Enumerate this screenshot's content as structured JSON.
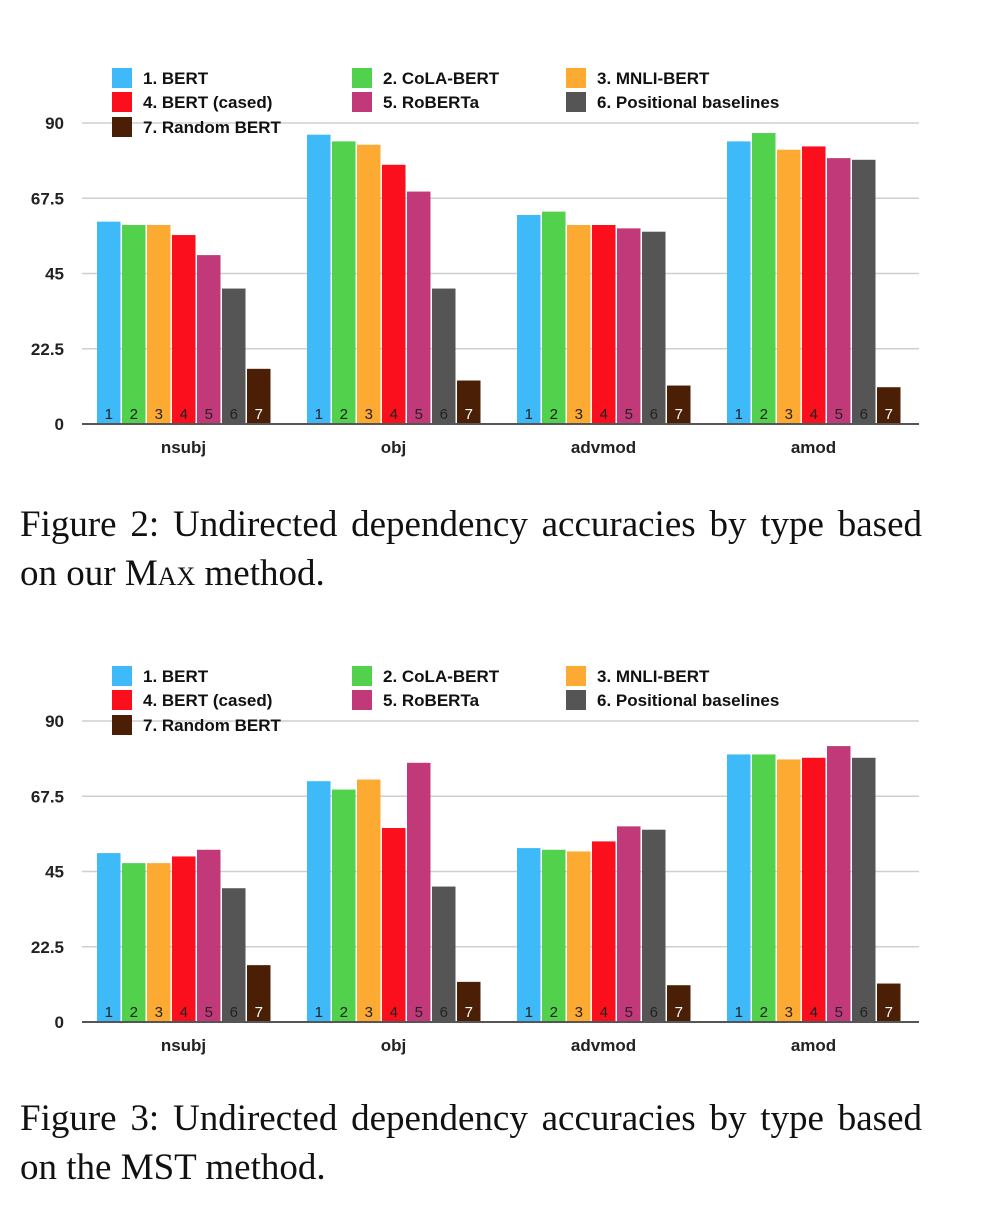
{
  "figures": [
    {
      "id": "fig2",
      "caption": {
        "prefix": "Figure 2:  Undirected dependency accuracies by type based on our ",
        "method": "Max",
        "suffix": " method."
      }
    },
    {
      "id": "fig3",
      "caption": {
        "prefix": "Figure 3:  Undirected dependency accuracies by type based on the MST method.",
        "method": "",
        "suffix": ""
      }
    }
  ],
  "chart_data": [
    {
      "type": "bar",
      "title": "",
      "xlabel": "",
      "ylabel": "",
      "ylim": [
        0,
        90
      ],
      "yticks": [
        "0",
        "22.5",
        "45",
        "67.5",
        "90"
      ],
      "grid": true,
      "legend_position": "top",
      "categories": [
        "nsubj",
        "obj",
        "advmod",
        "amod"
      ],
      "bar_labels": [
        "1",
        "2",
        "3",
        "4",
        "5",
        "6",
        "7"
      ],
      "series": [
        {
          "name": "1. BERT",
          "color": "#3DBAF7",
          "values": [
            60.5,
            86.5,
            62.5,
            84.5
          ]
        },
        {
          "name": "2. CoLA-BERT",
          "color": "#52D24C",
          "values": [
            59.5,
            84.5,
            63.5,
            87
          ]
        },
        {
          "name": "3. MNLI-BERT",
          "color": "#FDAA33",
          "values": [
            59.5,
            83.5,
            59.5,
            82
          ]
        },
        {
          "name": "4. BERT (cased)",
          "color": "#FB0F1D",
          "values": [
            56.5,
            77.5,
            59.5,
            83
          ]
        },
        {
          "name": "5. RoBERTa",
          "color": "#C2397A",
          "values": [
            50.5,
            69.5,
            58.5,
            79.5
          ]
        },
        {
          "name": "6. Positional baselines",
          "color": "#555555",
          "values": [
            40.5,
            40.5,
            57.5,
            79
          ]
        },
        {
          "name": "7. Random BERT",
          "color": "#4A1F05",
          "values": [
            16.5,
            13,
            11.5,
            11
          ]
        }
      ]
    },
    {
      "type": "bar",
      "title": "",
      "xlabel": "",
      "ylabel": "",
      "ylim": [
        0,
        90
      ],
      "yticks": [
        "0",
        "22.5",
        "45",
        "67.5",
        "90"
      ],
      "grid": true,
      "legend_position": "top",
      "categories": [
        "nsubj",
        "obj",
        "advmod",
        "amod"
      ],
      "bar_labels": [
        "1",
        "2",
        "3",
        "4",
        "5",
        "6",
        "7"
      ],
      "series": [
        {
          "name": "1. BERT",
          "color": "#3DBAF7",
          "values": [
            50.5,
            72,
            52,
            80
          ]
        },
        {
          "name": "2. CoLA-BERT",
          "color": "#52D24C",
          "values": [
            47.5,
            69.5,
            51.5,
            80
          ]
        },
        {
          "name": "3. MNLI-BERT",
          "color": "#FDAA33",
          "values": [
            47.5,
            72.5,
            51,
            78.5
          ]
        },
        {
          "name": "4. BERT (cased)",
          "color": "#FB0F1D",
          "values": [
            49.5,
            58,
            54,
            79
          ]
        },
        {
          "name": "5. RoBERTa",
          "color": "#C2397A",
          "values": [
            51.5,
            77.5,
            58.5,
            82.5
          ]
        },
        {
          "name": "6. Positional baselines",
          "color": "#555555",
          "values": [
            40,
            40.5,
            57.5,
            79
          ]
        },
        {
          "name": "7. Random BERT",
          "color": "#4A1F05",
          "values": [
            17,
            12,
            11,
            11.5
          ]
        }
      ]
    }
  ]
}
